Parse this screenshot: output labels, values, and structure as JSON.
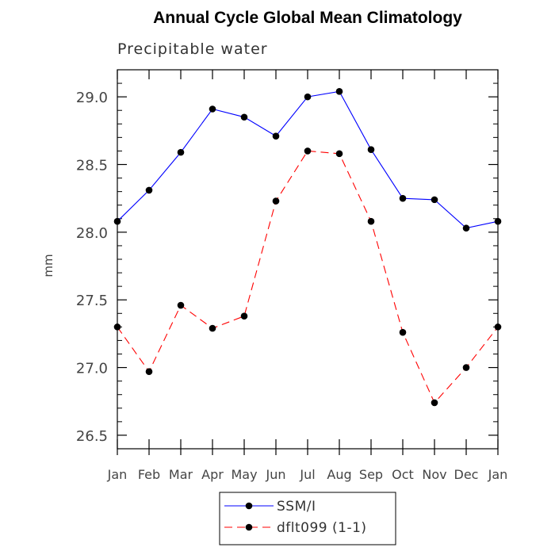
{
  "chart_data": {
    "type": "line",
    "title": "Annual Cycle Global Mean Climatology",
    "subtitle": "Precipitable water",
    "xlabel": "",
    "ylabel": "mm",
    "categories": [
      "Jan",
      "Feb",
      "Mar",
      "Apr",
      "May",
      "Jun",
      "Jul",
      "Aug",
      "Sep",
      "Oct",
      "Nov",
      "Dec",
      "Jan"
    ],
    "ylim": [
      26.4,
      29.2
    ],
    "yticks": [
      26.5,
      27.0,
      27.5,
      28.0,
      28.5,
      29.0
    ],
    "ytick_labels": [
      "26.5",
      "27.0",
      "27.5",
      "28.0",
      "28.5",
      "29.0"
    ],
    "yminor_step": 0.1,
    "grid": false,
    "legend_position": "bottom",
    "series": [
      {
        "name": "SSM/I",
        "color": "#0000ff",
        "line_style": "solid",
        "marker": "filled-circle",
        "values": [
          28.08,
          28.31,
          28.59,
          28.91,
          28.85,
          28.71,
          29.0,
          29.04,
          28.61,
          28.25,
          28.24,
          28.03,
          28.08
        ]
      },
      {
        "name": "dflt099 (1-1)",
        "color": "#ff0000",
        "line_style": "dashed",
        "marker": "filled-circle",
        "values": [
          27.3,
          26.97,
          27.46,
          27.29,
          27.38,
          28.23,
          28.6,
          28.58,
          28.08,
          27.26,
          26.74,
          27.0,
          27.3
        ]
      }
    ]
  }
}
